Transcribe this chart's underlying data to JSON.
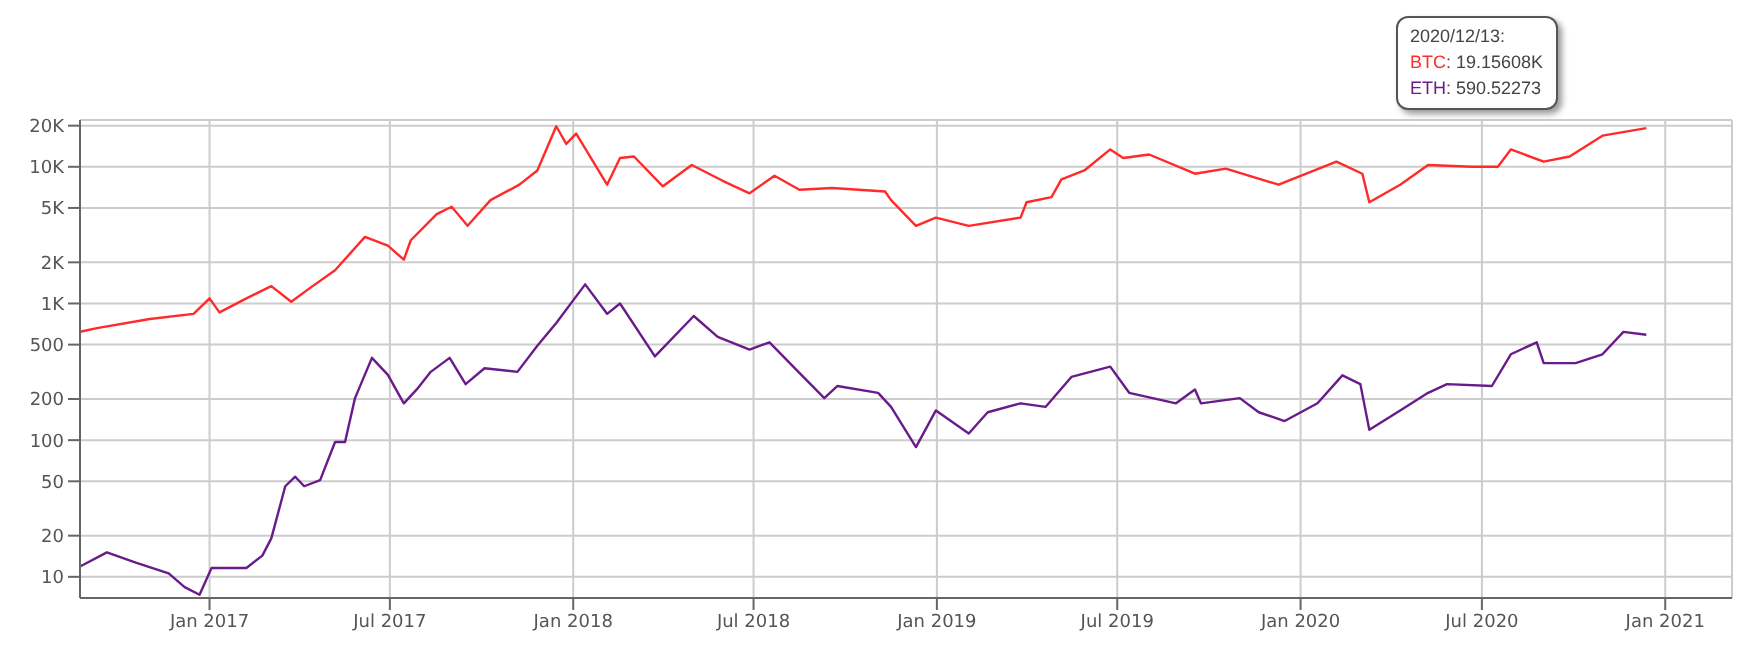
{
  "chart_data": {
    "type": "line",
    "log": "y",
    "grid": true,
    "legend": false,
    "xlim": [
      "2016-08-24",
      "2021-03-09"
    ],
    "xticks": [
      {
        "value": "2017-01-01",
        "label": "Jan 2017"
      },
      {
        "value": "2017-07-01",
        "label": "Jul 2017"
      },
      {
        "value": "2018-01-01",
        "label": "Jan 2018"
      },
      {
        "value": "2018-07-01",
        "label": "Jul 2018"
      },
      {
        "value": "2019-01-01",
        "label": "Jan 2019"
      },
      {
        "value": "2019-07-01",
        "label": "Jul 2019"
      },
      {
        "value": "2020-01-01",
        "label": "Jan 2020"
      },
      {
        "value": "2020-07-01",
        "label": "Jul 2020"
      },
      {
        "value": "2021-01-01",
        "label": "Jan 2021"
      }
    ],
    "ylim": [
      7,
      22000
    ],
    "yticks": [
      10,
      20,
      50,
      100,
      200,
      500,
      {
        "value": 1000,
        "label": "1K"
      },
      {
        "value": 2000,
        "label": "2K"
      },
      {
        "value": 5000,
        "label": "5K"
      },
      {
        "value": 10000,
        "label": "10K"
      },
      {
        "value": 20000,
        "label": "20K"
      }
    ],
    "annotations": [
      "2020/12/13:",
      ": 19.15608K",
      ": 590.52273"
    ],
    "series": [
      {
        "name": "BTC",
        "color": "#ff2a2a",
        "x": [
          "2016-08-24",
          "2016-09-10",
          "2016-11-02",
          "2016-12-16",
          "2017-01-01",
          "2017-01-11",
          "2017-02-07",
          "2017-03-04",
          "2017-03-24",
          "2017-04-12",
          "2017-05-07",
          "2017-06-06",
          "2017-06-29",
          "2017-07-15",
          "2017-07-22",
          "2017-08-17",
          "2017-09-01",
          "2017-09-17",
          "2017-10-10",
          "2017-11-08",
          "2017-11-26",
          "2017-12-15",
          "2017-12-25",
          "2018-01-04",
          "2018-02-04",
          "2018-02-17",
          "2018-03-03",
          "2018-04-01",
          "2018-04-30",
          "2018-05-31",
          "2018-06-27",
          "2018-07-22",
          "2018-08-16",
          "2018-09-18",
          "2018-11-10",
          "2018-11-16",
          "2018-12-11",
          "2018-12-31",
          "2019-02-02",
          "2019-03-26",
          "2019-04-01",
          "2019-04-26",
          "2019-05-06",
          "2019-05-29",
          "2019-06-24",
          "2019-07-07",
          "2019-08-02",
          "2019-09-17",
          "2019-10-18",
          "2019-12-10",
          "2020-02-06",
          "2020-03-03",
          "2020-03-10",
          "2020-04-10",
          "2020-05-08",
          "2020-06-21",
          "2020-07-17",
          "2020-07-30",
          "2020-09-01",
          "2020-09-27",
          "2020-10-30",
          "2020-12-13"
        ],
        "values": [
          620,
          660,
          770,
          840,
          1090,
          860,
          1090,
          1340,
          1030,
          1300,
          1750,
          3070,
          2650,
          2090,
          2900,
          4500,
          5100,
          3700,
          5700,
          7400,
          9400,
          19800,
          14700,
          17500,
          7400,
          11600,
          11900,
          7200,
          10300,
          7900,
          6400,
          8600,
          6800,
          7000,
          6600,
          5700,
          3700,
          4250,
          3700,
          4250,
          5500,
          6000,
          8100,
          9400,
          13400,
          11600,
          12300,
          8900,
          9700,
          7400,
          10900,
          8900,
          5500,
          7400,
          10300,
          10000,
          10000,
          13400,
          10900,
          11900,
          16900,
          19200
        ]
      },
      {
        "name": "ETH",
        "color": "#6a1b8a",
        "x": [
          "2016-08-24",
          "2016-09-20",
          "2016-10-19",
          "2016-11-21",
          "2016-12-07",
          "2016-12-22",
          "2017-01-03",
          "2017-02-07",
          "2017-02-23",
          "2017-03-04",
          "2017-03-18",
          "2017-03-28",
          "2017-04-06",
          "2017-04-22",
          "2017-05-07",
          "2017-05-17",
          "2017-05-27",
          "2017-06-13",
          "2017-06-29",
          "2017-07-15",
          "2017-07-28",
          "2017-08-11",
          "2017-08-30",
          "2017-09-15",
          "2017-10-04",
          "2017-11-06",
          "2017-11-26",
          "2017-12-15",
          "2018-01-13",
          "2018-02-04",
          "2018-02-17",
          "2018-03-24",
          "2018-05-02",
          "2018-05-26",
          "2018-06-27",
          "2018-07-17",
          "2018-08-15",
          "2018-09-10",
          "2018-09-23",
          "2018-11-03",
          "2018-11-16",
          "2018-12-11",
          "2018-12-31",
          "2019-02-02",
          "2019-02-21",
          "2019-03-26",
          "2019-04-20",
          "2019-05-16",
          "2019-06-24",
          "2019-07-13",
          "2019-08-29",
          "2019-09-17",
          "2019-09-23",
          "2019-11-01",
          "2019-11-20",
          "2019-12-16",
          "2020-01-18",
          "2020-02-12",
          "2020-03-01",
          "2020-03-10",
          "2020-04-10",
          "2020-05-08",
          "2020-05-27",
          "2020-07-11",
          "2020-07-30",
          "2020-08-25",
          "2020-09-01",
          "2020-10-03",
          "2020-10-30",
          "2020-11-20",
          "2020-12-13"
        ],
        "values": [
          11.9,
          15.1,
          12.7,
          10.6,
          8.4,
          7.4,
          11.6,
          11.6,
          14.3,
          19.1,
          46,
          54,
          46,
          51,
          97,
          97,
          203,
          400,
          300,
          186,
          235,
          316,
          400,
          257,
          336,
          316,
          490,
          720,
          1380,
          840,
          1000,
          410,
          810,
          570,
          460,
          520,
          316,
          203,
          249,
          222,
          175,
          89,
          165,
          112,
          160,
          186,
          175,
          290,
          345,
          222,
          186,
          235,
          186,
          203,
          160,
          138,
          186,
          298,
          257,
          119,
          165,
          222,
          257,
          249,
          425,
          520,
          366,
          366,
          425,
          620,
          591
        ]
      }
    ]
  }
}
